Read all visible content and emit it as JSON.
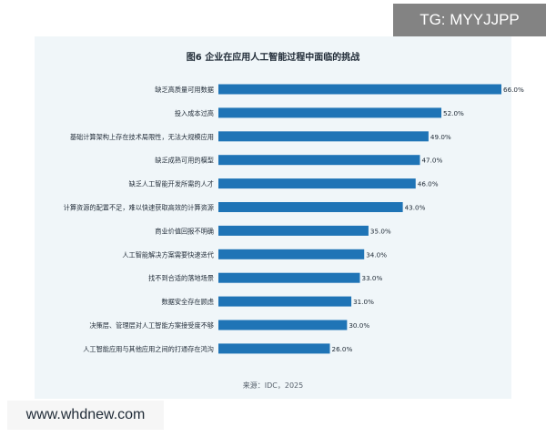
{
  "watermark_top": "TG: MYYJJPP",
  "watermark_bottom": "www.whdnew.com",
  "source": "来源：IDC，2025",
  "colors": {
    "bar": "#1f74b6",
    "panel": "#f0f6f9",
    "label": "#1f2a36"
  },
  "chart_data": {
    "type": "bar",
    "orientation": "horizontal",
    "title": "图6 企业在应用人工智能过程中面临的挑战",
    "xlabel": "",
    "ylabel": "",
    "xlim": [
      0,
      66
    ],
    "grid": false,
    "legend": "none",
    "categories": [
      "缺乏高质量可用数据",
      "投入成本过高",
      "基础计算架构上存在技术局限性，无法大规模应用",
      "缺乏成熟可用的模型",
      "缺乏人工智能开发所需的人才",
      "计算资源的配置不足，难以快速获取高效的计算资源",
      "商业价值回报不明确",
      "人工智能解决方案需要快速迭代",
      "找不到合适的落地场景",
      "数据安全存在顾虑",
      "决策层、管理层对人工智能方案接受度不够",
      "人工智能应用与其他应用之间的打通存在鸿沟"
    ],
    "values": [
      66.0,
      52.0,
      49.0,
      47.0,
      46.0,
      43.0,
      35.0,
      34.0,
      33.0,
      31.0,
      30.0,
      26.0
    ],
    "value_labels": [
      "66.0%",
      "52.0%",
      "49.0%",
      "47.0%",
      "46.0%",
      "43.0%",
      "35.0%",
      "34.0%",
      "33.0%",
      "31.0%",
      "30.0%",
      "26.0%"
    ]
  }
}
